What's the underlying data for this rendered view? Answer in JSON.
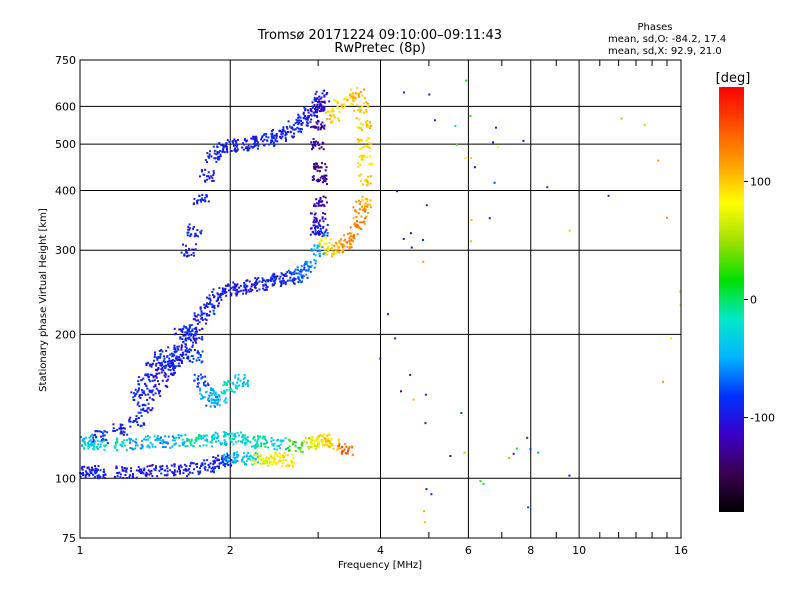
{
  "header": {
    "title": "Tromsø 20171224 09:10:00–09:11:43",
    "subtitle": "RwPretec (8p)"
  },
  "stats": {
    "heading": "Phases",
    "line_o": "mean, sd,O: -84.2, 17.4",
    "line_x": "mean, sd,X:  92.9, 21.0"
  },
  "chart_data": {
    "type": "scatter",
    "xlabel": "Frequency [MHz]",
    "ylabel": "Stationary phase Virtual Height [km]",
    "x_scale": "log",
    "y_scale": "log",
    "xlim": [
      1,
      16
    ],
    "ylim": [
      75,
      750
    ],
    "x_ticks": [
      1,
      2,
      4,
      6,
      8,
      10,
      16
    ],
    "y_ticks": [
      75,
      100,
      200,
      300,
      400,
      500,
      600,
      750
    ],
    "grid": true,
    "color_by": "phase",
    "colorbar": {
      "label": "[deg]",
      "range": [
        -180,
        180
      ],
      "ticks": [
        100,
        0,
        -100
      ],
      "colors": [
        "#000000",
        "#3a0050",
        "#3a00c8",
        "#0030ff",
        "#00b4ff",
        "#00e8c8",
        "#00e000",
        "#a0e000",
        "#ffff00",
        "#ffa000",
        "#ff5000",
        "#ff0000"
      ]
    },
    "series": [
      {
        "points": [
          [
            1.02,
            103,
            -95
          ],
          [
            1.05,
            103,
            -98
          ],
          [
            1.1,
            103,
            -95
          ],
          [
            1.2,
            103,
            -100
          ],
          [
            1.3,
            103,
            -97
          ],
          [
            1.4,
            104,
            -98
          ],
          [
            1.5,
            104,
            -95
          ],
          [
            1.6,
            104,
            -96
          ],
          [
            1.7,
            105,
            -92
          ],
          [
            1.8,
            106,
            -93
          ],
          [
            1.9,
            108,
            -92
          ],
          [
            1.95,
            109,
            -90
          ],
          [
            2.0,
            110,
            -60
          ],
          [
            2.1,
            110,
            -40
          ],
          [
            2.2,
            110,
            -30
          ],
          [
            2.3,
            109,
            70
          ],
          [
            2.4,
            109,
            80
          ],
          [
            2.5,
            110,
            85
          ],
          [
            2.6,
            109,
            90
          ]
        ]
      },
      {
        "points": [
          [
            1.02,
            120,
            -40
          ],
          [
            1.05,
            118,
            -30
          ],
          [
            1.1,
            118,
            -30
          ],
          [
            1.2,
            118,
            -20
          ],
          [
            1.3,
            118,
            -50
          ],
          [
            1.4,
            119,
            -40
          ],
          [
            1.5,
            119,
            -60
          ],
          [
            1.6,
            120,
            -40
          ],
          [
            1.7,
            120,
            -10
          ],
          [
            1.8,
            120,
            -30
          ],
          [
            1.9,
            121,
            -40
          ],
          [
            2.0,
            122,
            -20
          ],
          [
            2.1,
            121,
            -30
          ],
          [
            2.2,
            120,
            -20
          ],
          [
            2.3,
            119,
            -10
          ],
          [
            2.5,
            118,
            -30
          ],
          [
            2.7,
            117,
            20
          ],
          [
            2.9,
            118,
            60
          ],
          [
            3.0,
            119,
            80
          ],
          [
            3.1,
            120,
            90
          ],
          [
            3.2,
            118,
            100
          ],
          [
            3.4,
            115,
            140
          ]
        ]
      },
      {
        "points": [
          [
            1.1,
            122,
            -90
          ],
          [
            1.2,
            126,
            -95
          ],
          [
            1.3,
            132,
            -92
          ],
          [
            1.35,
            140,
            -90
          ],
          [
            1.4,
            150,
            -95
          ],
          [
            1.45,
            160,
            -100
          ],
          [
            1.5,
            168,
            -98
          ],
          [
            1.55,
            175,
            -94
          ],
          [
            1.6,
            182,
            -96
          ],
          [
            1.65,
            190,
            -93
          ],
          [
            1.7,
            200,
            -95
          ],
          [
            1.75,
            215,
            -97
          ],
          [
            1.8,
            225,
            -90
          ],
          [
            1.85,
            235,
            -92
          ],
          [
            1.9,
            243,
            -94
          ],
          [
            2.0,
            248,
            -95
          ],
          [
            2.1,
            250,
            -95
          ],
          [
            2.2,
            252,
            -97
          ],
          [
            2.3,
            255,
            -92
          ],
          [
            2.4,
            257,
            -94
          ],
          [
            2.5,
            260,
            -90
          ],
          [
            2.6,
            262,
            -88
          ],
          [
            2.7,
            265,
            -80
          ],
          [
            2.8,
            270,
            -70
          ],
          [
            2.9,
            280,
            -60
          ],
          [
            3.0,
            300,
            -50
          ],
          [
            3.05,
            330,
            -80
          ]
        ]
      },
      {
        "points": [
          [
            1.3,
            150,
            -90
          ],
          [
            1.35,
            160,
            -92
          ],
          [
            1.4,
            170,
            -95
          ],
          [
            1.45,
            180,
            -90
          ],
          [
            1.5,
            175,
            -90
          ],
          [
            1.55,
            185,
            -96
          ],
          [
            1.6,
            200,
            -90
          ],
          [
            1.65,
            205,
            -85
          ],
          [
            1.7,
            180,
            -80
          ],
          [
            1.75,
            160,
            -80
          ],
          [
            1.8,
            150,
            -50
          ],
          [
            1.85,
            145,
            -60
          ],
          [
            1.9,
            148,
            -30
          ],
          [
            2.0,
            155,
            -20
          ],
          [
            2.1,
            160,
            -40
          ]
        ]
      },
      {
        "points": [
          [
            1.65,
            300,
            -95
          ],
          [
            1.7,
            330,
            -92
          ],
          [
            1.75,
            380,
            -90
          ],
          [
            1.8,
            430,
            -95
          ],
          [
            1.85,
            470,
            -94
          ],
          [
            1.9,
            490,
            -92
          ],
          [
            2.0,
            495,
            -95
          ],
          [
            2.1,
            498,
            -96
          ],
          [
            2.2,
            500,
            -95
          ],
          [
            2.3,
            505,
            -92
          ],
          [
            2.4,
            510,
            -90
          ],
          [
            2.5,
            520,
            -94
          ],
          [
            2.6,
            530,
            -90
          ],
          [
            2.7,
            545,
            -92
          ],
          [
            2.8,
            560,
            -95
          ],
          [
            2.9,
            580,
            -90
          ],
          [
            3.0,
            600,
            -95
          ],
          [
            3.05,
            630,
            -100
          ]
        ]
      },
      {
        "points": [
          [
            3.0,
            600,
            -120
          ],
          [
            3.0,
            550,
            -125
          ],
          [
            3.0,
            500,
            -120
          ],
          [
            3.02,
            450,
            -130
          ],
          [
            3.02,
            420,
            -125
          ],
          [
            3.02,
            380,
            -120
          ],
          [
            3.0,
            350,
            -115
          ],
          [
            3.0,
            330,
            -110
          ]
        ]
      },
      {
        "points": [
          [
            3.2,
            300,
            100
          ],
          [
            3.3,
            305,
            110
          ],
          [
            3.4,
            310,
            120
          ],
          [
            3.5,
            320,
            125
          ],
          [
            3.6,
            340,
            130
          ],
          [
            3.65,
            360,
            120
          ],
          [
            3.7,
            380,
            110
          ],
          [
            3.7,
            420,
            100
          ],
          [
            3.72,
            460,
            90
          ],
          [
            3.72,
            500,
            95
          ],
          [
            3.7,
            550,
            100
          ],
          [
            3.65,
            600,
            105
          ],
          [
            3.6,
            640,
            110
          ],
          [
            3.5,
            620,
            100
          ],
          [
            3.3,
            600,
            90
          ],
          [
            3.2,
            570,
            100
          ],
          [
            3.1,
            310,
            80
          ]
        ]
      },
      {
        "points": [
          [
            4.2,
            390,
            -100
          ],
          [
            4.3,
            320,
            -100
          ],
          [
            4.5,
            300,
            -100
          ],
          [
            4.6,
            320,
            -90
          ],
          [
            5.0,
            380,
            -100
          ],
          [
            5.0,
            320,
            -90
          ],
          [
            5.0,
            290,
            110
          ],
          [
            5.0,
            150,
            -100
          ],
          [
            5.0,
            130,
            -100
          ],
          [
            5.0,
            95,
            -90
          ],
          [
            5.0,
            90,
            -90
          ],
          [
            5.0,
            85,
            100
          ],
          [
            5.0,
            80,
            100
          ],
          [
            5.0,
            630,
            -100
          ],
          [
            5.0,
            560,
            -100
          ],
          [
            4.5,
            630,
            -100
          ],
          [
            4.1,
            175,
            -100
          ],
          [
            4.3,
            155,
            -100
          ],
          [
            4.6,
            165,
            -100
          ],
          [
            4.7,
            150,
            110
          ],
          [
            4.0,
            220,
            -100
          ],
          [
            4.2,
            200,
            -100
          ],
          [
            5.8,
            660,
            20
          ],
          [
            5.8,
            560,
            0
          ],
          [
            5.8,
            500,
            20
          ],
          [
            5.9,
            480,
            100
          ],
          [
            6.0,
            560,
            20
          ],
          [
            6.0,
            350,
            100
          ],
          [
            6.0,
            320,
            110
          ],
          [
            6.0,
            460,
            110
          ],
          [
            6.0,
            140,
            -90
          ],
          [
            6.5,
            360,
            -100
          ],
          [
            6.3,
            440,
            -100
          ],
          [
            6.6,
            500,
            -100
          ],
          [
            6.7,
            540,
            -100
          ],
          [
            7.0,
            480,
            100
          ],
          [
            7.0,
            410,
            -90
          ],
          [
            7.5,
            520,
            -100
          ],
          [
            7.2,
            110,
            -100
          ],
          [
            7.3,
            108,
            30
          ],
          [
            7.5,
            118,
            0
          ],
          [
            7.8,
            118,
            -90
          ],
          [
            8.0,
            118,
            -100
          ],
          [
            8.3,
            114,
            -50
          ],
          [
            8.1,
            86,
            -90
          ],
          [
            8.5,
            395,
            -100
          ],
          [
            9.5,
            100,
            -100
          ],
          [
            9.8,
            330,
            100
          ],
          [
            11.5,
            380,
            -100
          ],
          [
            12.0,
            570,
            110
          ],
          [
            14.0,
            560,
            110
          ],
          [
            14.2,
            470,
            110
          ],
          [
            14.5,
            360,
            110
          ],
          [
            15.5,
            370,
            110
          ],
          [
            15.8,
            240,
            100
          ],
          [
            15.8,
            230,
            80
          ],
          [
            15.8,
            200,
            90
          ],
          [
            14.5,
            155,
            110
          ],
          [
            5.5,
            110,
            -100
          ],
          [
            5.7,
            115,
            60
          ],
          [
            6.3,
            98,
            40
          ],
          [
            6.4,
            95,
            0
          ]
        ]
      }
    ]
  }
}
